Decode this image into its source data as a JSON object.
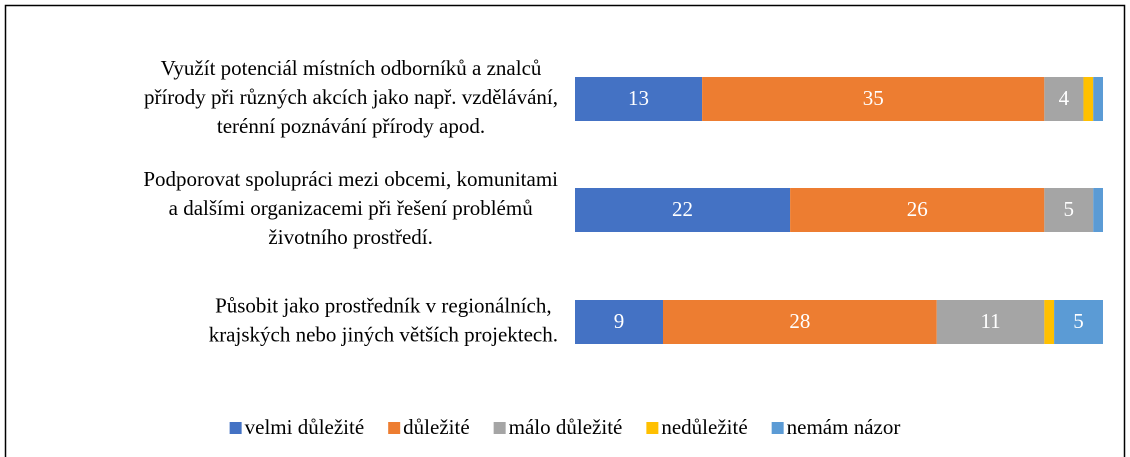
{
  "chart_data": {
    "type": "stacked_barh",
    "categories": [
      [
        "Využít potenciál místních odborníků a znalců",
        "přírody při různých akcích jako např. vzdělávání,",
        "terénní poznávání přírody apod."
      ],
      [
        "Podporovat spolupráci mezi obcemi, komunitami",
        "a dalšími organizacemi při řešení problémů",
        "životního prostředí."
      ],
      [
        "Působit jako prostředník v regionálních,",
        "krajských nebo jiných větších projektech."
      ]
    ],
    "series": [
      {
        "name": "velmi důležité",
        "color": "#4472c4",
        "values": [
          13,
          22,
          9
        ]
      },
      {
        "name": "důležité",
        "color": "#ed7d31",
        "values": [
          35,
          26,
          28
        ]
      },
      {
        "name": "málo důležité",
        "color": "#a5a5a5",
        "values": [
          4,
          5,
          11
        ]
      },
      {
        "name": "nedůležité",
        "color": "#ffc000",
        "values": [
          1,
          0,
          1
        ]
      },
      {
        "name": "nemám názor",
        "color": "#5b9bd5",
        "values": [
          1,
          1,
          5
        ]
      }
    ],
    "xlim": [
      0,
      54
    ],
    "legend": "bottom"
  }
}
